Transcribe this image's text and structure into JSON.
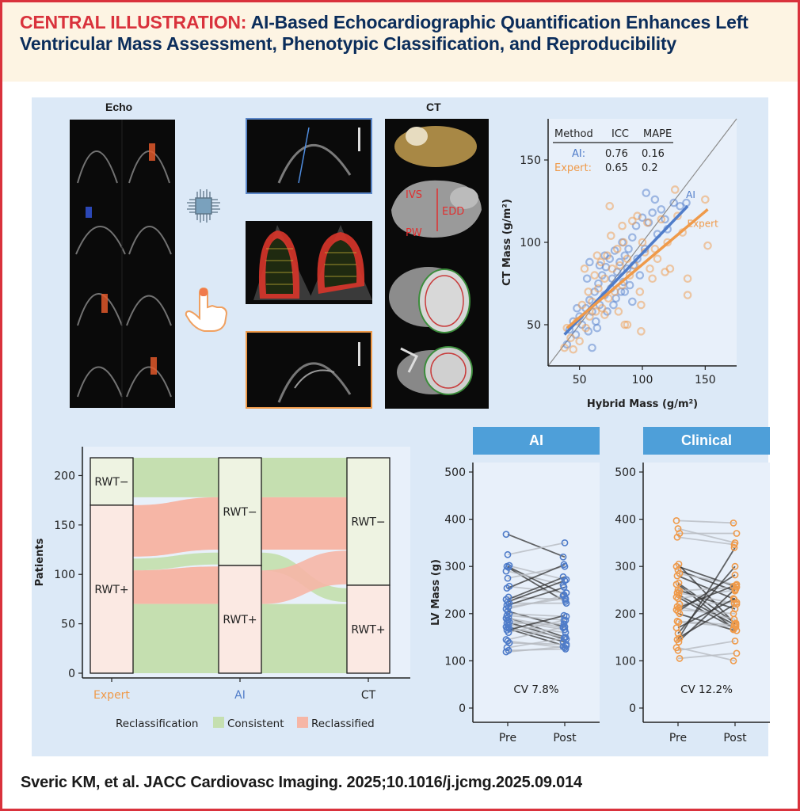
{
  "title": {
    "lead": "CENTRAL ILLUSTRATION:",
    "text": "AI-Based Echocardiographic Quantification Enhances Left Ventricular Mass Assessment, Phenotypic Classification, and Reproducibility"
  },
  "sections": {
    "echo": "Echo",
    "ct": "CT"
  },
  "ct_labels": {
    "ivs": "IVS",
    "edd": "EDD",
    "pw": "PW"
  },
  "icons": {
    "ai_chip": "ai-chip-icon",
    "manual_hand": "pointing-hand-icon"
  },
  "colors": {
    "ai": "#4f7cc9",
    "expert": "#ef9a4a",
    "consistent": "#c5dfb0",
    "reclassified": "#f6b6a6",
    "accent": "#d9323c",
    "header": "#4e9fd9",
    "title": "#0b2d5b"
  },
  "footer": {
    "citation": "Sveric KM, et al. JACC Cardiovasc Imaging. 2025;10.1016/j.jcmg.2025.09.014"
  },
  "chart_data": [
    {
      "type": "scatter",
      "xlabel": "Hybrid Mass (g/m²)",
      "ylabel": "CT Mass (g/m²)",
      "xlim": [
        25,
        175
      ],
      "ylim": [
        25,
        175
      ],
      "xticks": [
        50,
        100,
        150
      ],
      "yticks": [
        50,
        100,
        150
      ],
      "identity_line": true,
      "table": {
        "headers": [
          "Method",
          "ICC",
          "MAPE"
        ],
        "rows": [
          {
            "method": "AI:",
            "icc": "0.76",
            "mape": "0.16"
          },
          {
            "method": "Expert:",
            "icc": "0.65",
            "mape": "0.2"
          }
        ]
      },
      "series": [
        {
          "name": "AI",
          "label": "AI",
          "fit": {
            "x": [
              38,
              136
            ],
            "y": [
              44,
              122
            ]
          },
          "points": [
            [
              40,
              38
            ],
            [
              42,
              47
            ],
            [
              45,
              52
            ],
            [
              47,
              44
            ],
            [
              50,
              55
            ],
            [
              52,
              50
            ],
            [
              55,
              60
            ],
            [
              57,
              46
            ],
            [
              58,
              65
            ],
            [
              60,
              58
            ],
            [
              62,
              70
            ],
            [
              63,
              52
            ],
            [
              65,
              75
            ],
            [
              66,
              62
            ],
            [
              68,
              80
            ],
            [
              70,
              68
            ],
            [
              71,
              85
            ],
            [
              72,
              58
            ],
            [
              74,
              90
            ],
            [
              75,
              72
            ],
            [
              76,
              78
            ],
            [
              78,
              95
            ],
            [
              79,
              66
            ],
            [
              80,
              82
            ],
            [
              82,
              88
            ],
            [
              83,
              70
            ],
            [
              84,
              100
            ],
            [
              85,
              76
            ],
            [
              86,
              92
            ],
            [
              88,
              84
            ],
            [
              89,
              96
            ],
            [
              90,
              74
            ],
            [
              92,
              103
            ],
            [
              93,
              86
            ],
            [
              95,
              110
            ],
            [
              96,
              90
            ],
            [
              98,
              80
            ],
            [
              100,
              115
            ],
            [
              102,
              96
            ],
            [
              103,
              130
            ],
            [
              105,
              112
            ],
            [
              108,
              118
            ],
            [
              110,
              126
            ],
            [
              112,
              105
            ],
            [
              115,
              120
            ],
            [
              118,
              114
            ],
            [
              120,
              108
            ],
            [
              125,
              124
            ],
            [
              130,
              122
            ],
            [
              135,
              124
            ],
            [
              58,
              88
            ],
            [
              64,
              48
            ],
            [
              70,
              92
            ],
            [
              77,
              62
            ],
            [
              86,
              70
            ],
            [
              92,
              64
            ],
            [
              60,
              36
            ],
            [
              48,
              60
            ],
            [
              56,
              78
            ],
            [
              66,
              86
            ]
          ]
        },
        {
          "name": "Expert",
          "label": "Expert",
          "fit": {
            "x": [
              40,
              152
            ],
            "y": [
              48,
              120
            ]
          },
          "points": [
            [
              38,
              36
            ],
            [
              40,
              48
            ],
            [
              43,
              42
            ],
            [
              45,
              35
            ],
            [
              48,
              52
            ],
            [
              50,
              40
            ],
            [
              52,
              62
            ],
            [
              55,
              48
            ],
            [
              57,
              70
            ],
            [
              58,
              55
            ],
            [
              60,
              64
            ],
            [
              62,
              80
            ],
            [
              63,
              58
            ],
            [
              65,
              72
            ],
            [
              67,
              88
            ],
            [
              68,
              60
            ],
            [
              70,
              78
            ],
            [
              72,
              92
            ],
            [
              73,
              66
            ],
            [
              75,
              104
            ],
            [
              76,
              84
            ],
            [
              78,
              70
            ],
            [
              80,
              96
            ],
            [
              81,
              58
            ],
            [
              82,
              86
            ],
            [
              84,
              74
            ],
            [
              85,
              100
            ],
            [
              86,
              50
            ],
            [
              88,
              90
            ],
            [
              90,
              80
            ],
            [
              92,
              113
            ],
            [
              94,
              86
            ],
            [
              96,
              116
            ],
            [
              98,
              70
            ],
            [
              99,
              62
            ],
            [
              100,
              100
            ],
            [
              102,
              94
            ],
            [
              104,
              112
            ],
            [
              106,
              84
            ],
            [
              108,
              78
            ],
            [
              110,
              96
            ],
            [
              112,
              90
            ],
            [
              115,
              114
            ],
            [
              118,
              82
            ],
            [
              120,
              100
            ],
            [
              122,
              84
            ],
            [
              126,
              132
            ],
            [
              128,
              116
            ],
            [
              132,
              106
            ],
            [
              136,
              78
            ],
            [
              136,
              68
            ],
            [
              150,
              126
            ],
            [
              152,
              98
            ],
            [
              74,
              122
            ],
            [
              64,
              92
            ],
            [
              54,
              84
            ],
            [
              88,
              50
            ],
            [
              99,
              46
            ],
            [
              70,
              56
            ],
            [
              84,
              110
            ]
          ]
        }
      ]
    },
    {
      "type": "alluvial",
      "ylabel": "Patients",
      "ylim": [
        0,
        218
      ],
      "yticks": [
        0,
        50,
        100,
        150,
        200
      ],
      "axes": [
        {
          "name": "Expert",
          "strata": [
            {
              "label": "RWT−",
              "count": 48
            },
            {
              "label": "RWT+",
              "count": 170
            }
          ]
        },
        {
          "name": "AI",
          "strata": [
            {
              "label": "RWT−",
              "count": 109
            },
            {
              "label": "RWT+",
              "count": 109
            }
          ]
        },
        {
          "name": "CT",
          "strata": [
            {
              "label": "RWT−",
              "count": 129
            },
            {
              "label": "RWT+",
              "count": 89
            }
          ]
        }
      ],
      "legend": {
        "title": "Reclassification",
        "items": [
          "Consistent",
          "Reclassified"
        ],
        "position": "bottom"
      }
    },
    {
      "type": "line",
      "ylabel": "LV Mass (g)",
      "ylim": [
        0,
        500
      ],
      "yticks": [
        0,
        100,
        200,
        300,
        400,
        500
      ],
      "categories": [
        "Pre",
        "Post"
      ],
      "facets": [
        {
          "name": "AI",
          "annotation": "CV 7.8%",
          "pairs": [
            [
              368,
              320
            ],
            [
              325,
              350
            ],
            [
              302,
              272
            ],
            [
              300,
              240
            ],
            [
              298,
              226
            ],
            [
              290,
              260
            ],
            [
              275,
              300
            ],
            [
              258,
              244
            ],
            [
              254,
              304
            ],
            [
              235,
              230
            ],
            [
              230,
              278
            ],
            [
              225,
              270
            ],
            [
              222,
              222
            ],
            [
              218,
              256
            ],
            [
              214,
              232
            ],
            [
              210,
              238
            ],
            [
              205,
              172
            ],
            [
              200,
              194
            ],
            [
              196,
              186
            ],
            [
              192,
              150
            ],
            [
              190,
              170
            ],
            [
              186,
              166
            ],
            [
              182,
              146
            ],
            [
              180,
              178
            ],
            [
              176,
              160
            ],
            [
              172,
              140
            ],
            [
              170,
              150
            ],
            [
              168,
              132
            ],
            [
              165,
              196
            ],
            [
              160,
              186
            ],
            [
              145,
              172
            ],
            [
              142,
              128
            ],
            [
              138,
              135
            ],
            [
              128,
              148
            ],
            [
              122,
              125
            ],
            [
              119,
              130
            ]
          ]
        },
        {
          "name": "Clinical",
          "annotation": "CV 12.2%",
          "pairs": [
            [
              397,
              392
            ],
            [
              380,
              350
            ],
            [
              370,
              370
            ],
            [
              362,
              346
            ],
            [
              305,
              178
            ],
            [
              300,
              258
            ],
            [
              292,
              248
            ],
            [
              285,
              262
            ],
            [
              280,
              230
            ],
            [
              265,
              180
            ],
            [
              262,
              166
            ],
            [
              250,
              210
            ],
            [
              248,
              256
            ],
            [
              244,
              222
            ],
            [
              240,
              176
            ],
            [
              235,
              168
            ],
            [
              232,
              250
            ],
            [
              220,
              224
            ],
            [
              215,
              188
            ],
            [
              212,
              260
            ],
            [
              208,
              200
            ],
            [
              205,
              282
            ],
            [
              200,
              164
            ],
            [
              184,
              176
            ],
            [
              182,
              172
            ],
            [
              170,
              232
            ],
            [
              158,
              300
            ],
            [
              148,
              220
            ],
            [
              145,
              340
            ],
            [
              140,
              252
            ],
            [
              128,
              100
            ],
            [
              122,
              142
            ],
            [
              105,
              116
            ]
          ]
        }
      ]
    }
  ]
}
